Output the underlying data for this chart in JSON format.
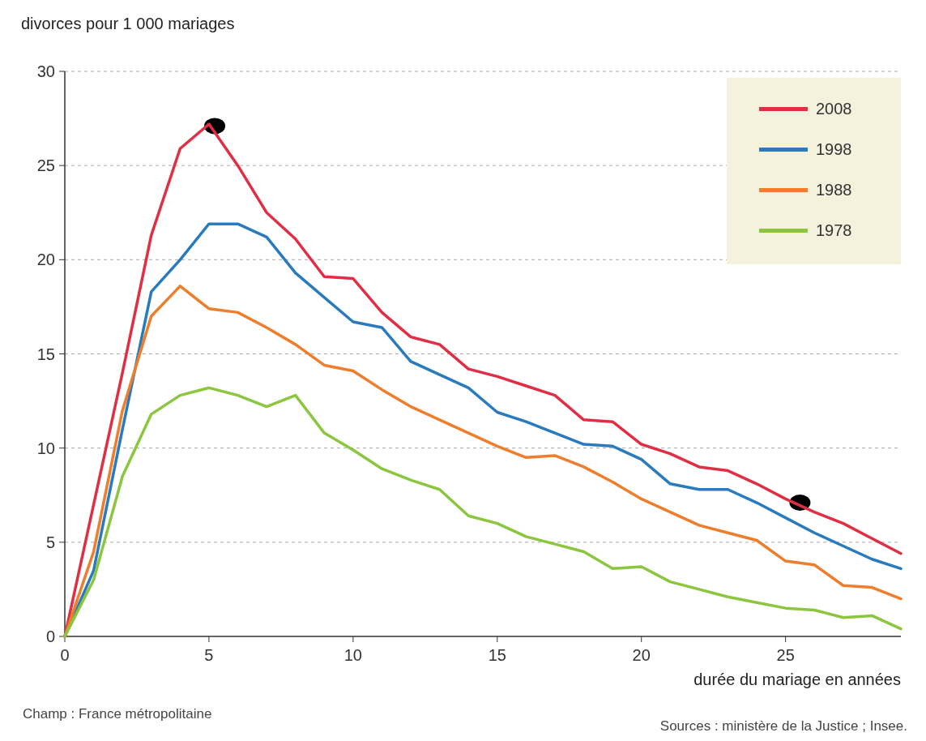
{
  "chart_data": {
    "type": "line",
    "ylabel": "divorces pour 1 000 mariages",
    "xlabel": "durée du mariage en années",
    "annotations": [
      "Champ : France métropolitaine",
      "Sources : ministère de la Justice ; Insee."
    ],
    "x": [
      0,
      1,
      2,
      3,
      4,
      5,
      6,
      7,
      8,
      9,
      10,
      11,
      12,
      13,
      14,
      15,
      16,
      17,
      18,
      19,
      20,
      21,
      22,
      23,
      24,
      25,
      26,
      27,
      28,
      29
    ],
    "xlim": [
      0,
      29
    ],
    "xticks": [
      0,
      5,
      10,
      15,
      20,
      25
    ],
    "ylim": [
      0,
      30
    ],
    "yticks": [
      0,
      5,
      10,
      15,
      20,
      25,
      30
    ],
    "grid": "y",
    "legend": "top right",
    "line_style": "solid",
    "series": [
      {
        "name": "2008",
        "color": "#e02f45",
        "values": [
          0,
          7,
          14,
          21.3,
          25.9,
          27.2,
          25,
          22.5,
          21.1,
          19.1,
          19,
          17.2,
          15.9,
          15.5,
          14.2,
          13.8,
          13.3,
          12.8,
          11.5,
          11.4,
          10.2,
          9.7,
          9,
          8.8,
          8.1,
          7.3,
          6.6,
          6,
          5.2,
          4.4
        ]
      },
      {
        "name": "1998",
        "color": "#2a7bbd",
        "values": [
          0,
          3.5,
          11,
          18.3,
          20,
          21.9,
          21.9,
          21.2,
          19.3,
          18,
          16.7,
          16.4,
          14.6,
          13.9,
          13.2,
          11.9,
          11.4,
          10.8,
          10.2,
          10.1,
          9.4,
          8.1,
          7.8,
          7.8,
          7.1,
          6.3,
          5.5,
          4.8,
          4.1,
          3.6
        ]
      },
      {
        "name": "1988",
        "color": "#ee7d2c",
        "values": [
          0,
          4.5,
          12,
          17,
          18.6,
          17.4,
          17.2,
          16.4,
          15.5,
          14.4,
          14.1,
          13.1,
          12.2,
          11.5,
          10.8,
          10.1,
          9.5,
          9.6,
          9,
          8.2,
          7.3,
          6.6,
          5.9,
          5.5,
          5.1,
          4,
          3.8,
          2.7,
          2.6,
          2
        ]
      },
      {
        "name": "1978",
        "color": "#8cc63f",
        "values": [
          0,
          3,
          8.5,
          11.8,
          12.8,
          13.2,
          12.8,
          12.2,
          12.8,
          10.8,
          9.9,
          8.9,
          8.3,
          7.8,
          6.4,
          6,
          5.3,
          4.9,
          4.5,
          3.6,
          3.7,
          2.9,
          2.5,
          2.1,
          1.8,
          1.5,
          1.4,
          1,
          1.1,
          0.4
        ]
      },
      {
        "type": "scatter",
        "color": "#000000",
        "x": [
          5.2,
          25.5
        ],
        "values": [
          27.1,
          7.1
        ]
      }
    ]
  }
}
